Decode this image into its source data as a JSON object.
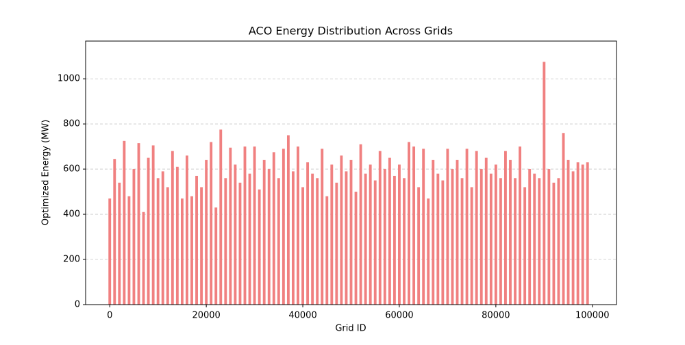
{
  "chart_data": {
    "type": "bar",
    "title": "ACO Energy Distribution Across Grids",
    "x_label": "Grid ID",
    "y_label": "Optimized Energy (MW)",
    "color": "#f08080",
    "grid": true,
    "x": [
      0,
      1000,
      2000,
      3000,
      4000,
      5000,
      6000,
      7000,
      8000,
      9000,
      10000,
      11000,
      12000,
      13000,
      14000,
      15000,
      16000,
      17000,
      18000,
      19000,
      20000,
      21000,
      22000,
      23000,
      24000,
      25000,
      26000,
      27000,
      28000,
      29000,
      30000,
      31000,
      32000,
      33000,
      34000,
      35000,
      36000,
      37000,
      38000,
      39000,
      40000,
      41000,
      42000,
      43000,
      44000,
      45000,
      46000,
      47000,
      48000,
      49000,
      50000,
      51000,
      52000,
      53000,
      54000,
      55000,
      56000,
      57000,
      58000,
      59000,
      60000,
      61000,
      62000,
      63000,
      64000,
      65000,
      66000,
      67000,
      68000,
      69000,
      70000,
      71000,
      72000,
      73000,
      74000,
      75000,
      76000,
      77000,
      78000,
      79000,
      80000,
      81000,
      82000,
      83000,
      84000,
      85000,
      86000,
      87000,
      88000,
      89000,
      90000,
      91000,
      92000,
      93000,
      94000,
      95000,
      96000,
      97000,
      98000,
      99000
    ],
    "values": [
      470,
      645,
      540,
      725,
      480,
      600,
      715,
      410,
      650,
      705,
      560,
      590,
      520,
      680,
      610,
      470,
      660,
      480,
      570,
      520,
      640,
      720,
      430,
      775,
      560,
      695,
      620,
      540,
      700,
      580,
      700,
      510,
      640,
      600,
      675,
      560,
      690,
      750,
      590,
      700,
      520,
      630,
      580,
      560,
      690,
      480,
      620,
      540,
      660,
      590,
      640,
      500,
      710,
      580,
      620,
      550,
      680,
      600,
      650,
      570,
      620,
      560,
      720,
      700,
      520,
      690,
      470,
      640,
      580,
      550,
      690,
      600,
      640,
      560,
      690,
      520,
      680,
      600,
      650,
      580,
      620,
      560,
      680,
      640,
      560,
      700,
      520,
      600,
      580,
      560,
      1075,
      600,
      540,
      560,
      760,
      640,
      590,
      630,
      620,
      630
    ],
    "xlim": [
      -5000,
      105000
    ],
    "xticks": [
      0,
      20000,
      40000,
      60000,
      80000,
      100000
    ],
    "ylim": [
      0,
      1167
    ],
    "yticks": [
      0,
      200,
      400,
      600,
      800,
      1000
    ]
  }
}
